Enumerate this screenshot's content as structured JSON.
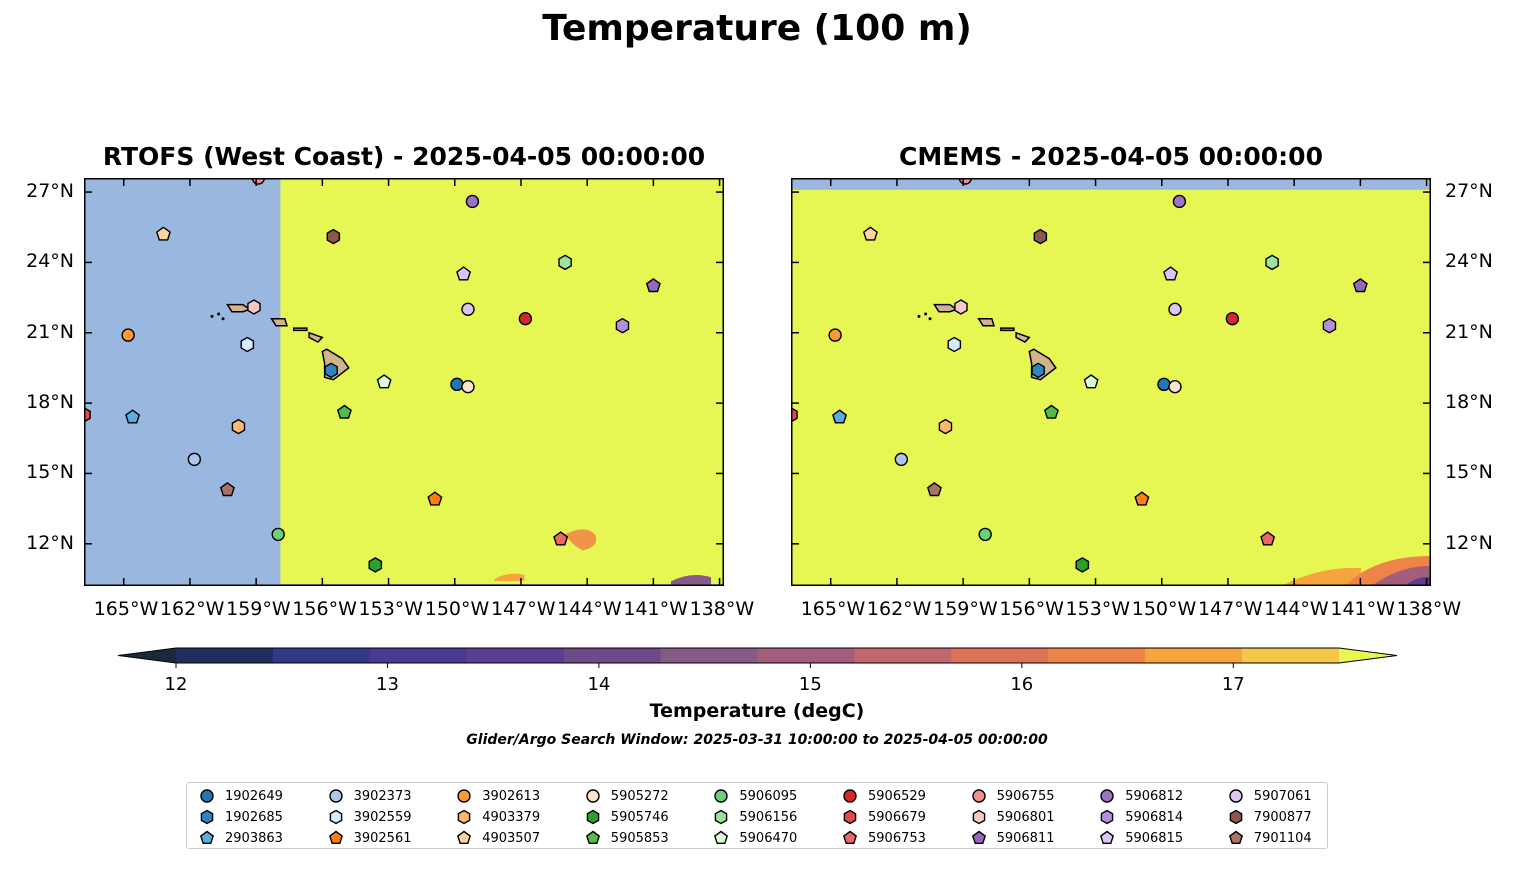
{
  "title": "Temperature (100 m)",
  "colors": {
    "land": "#d2b48c",
    "nodata": "#9ab7e0",
    "field_warm": "#e6f754",
    "colormap": [
      "#1b2a3a",
      "#1f2e5e",
      "#2e3a86",
      "#473a94",
      "#5b3e8f",
      "#6e4a88",
      "#855a84",
      "#a25e7a",
      "#c2686c",
      "#dd7359",
      "#ef8448",
      "#f5a43e",
      "#f3c74a",
      "#e6f754"
    ]
  },
  "panels": [
    {
      "title": "RTOFS (West Coast) - 2025-04-05 00:00:00"
    },
    {
      "title": "CMEMS - 2025-04-05 00:00:00"
    }
  ],
  "axes": {
    "lon_ticks": [
      "165°W",
      "162°W",
      "159°W",
      "156°W",
      "153°W",
      "150°W",
      "147°W",
      "144°W",
      "141°W",
      "138°W"
    ],
    "lat_ticks": [
      "27°N",
      "24°N",
      "21°N",
      "18°N",
      "15°N",
      "12°N"
    ]
  },
  "colorbar": {
    "label": "Temperature (degC)",
    "ticks": [
      "12",
      "13",
      "14",
      "15",
      "16",
      "17"
    ],
    "min": 11.75,
    "max": 17.75,
    "extend": "both"
  },
  "search_window": "Glider/Argo Search Window: 2025-03-31 10:00:00 to 2025-04-05 00:00:00",
  "chart_data": {
    "type": "scatter",
    "title": "Temperature (100 m)",
    "subplot_titles": [
      "RTOFS (West Coast) - 2025-04-05 00:00:00",
      "CMEMS - 2025-04-05 00:00:00"
    ],
    "xlabel": "",
    "ylabel": "",
    "xlim": [
      -166.8,
      -137.8
    ],
    "ylim": [
      10.2,
      27.6
    ],
    "grid": false,
    "legend_position": "bottom",
    "colorbar_label": "Temperature (degC)",
    "series": [
      {
        "name": "1902649",
        "marker": "circle",
        "color": "#1f77b4",
        "x": -149.9,
        "y": 18.8
      },
      {
        "name": "3902373",
        "marker": "circle",
        "color": "#aec7e8",
        "x": -161.8,
        "y": 15.6
      },
      {
        "name": "3902613",
        "marker": "circle",
        "color": "#ff9933",
        "x": -164.8,
        "y": 20.9
      },
      {
        "name": "5905272",
        "marker": "circle",
        "color": "#fde3cc",
        "x": -149.4,
        "y": 18.7
      },
      {
        "name": "5906095",
        "marker": "circle",
        "color": "#6cd07a",
        "x": -158.0,
        "y": 12.4
      },
      {
        "name": "5906529",
        "marker": "circle",
        "color": "#d62728",
        "x": -146.8,
        "y": 21.6
      },
      {
        "name": "5906755",
        "marker": "circle",
        "color": "#f0908c",
        "x": -158.9,
        "y": 27.6
      },
      {
        "name": "5906812",
        "marker": "circle",
        "color": "#9b72c4",
        "x": -149.2,
        "y": 26.6
      },
      {
        "name": "5907061",
        "marker": "circle",
        "color": "#dcc6f4",
        "x": -149.4,
        "y": 22.0
      },
      {
        "name": "1902685",
        "marker": "hexagon",
        "color": "#2e86c1",
        "x": -155.6,
        "y": 19.4
      },
      {
        "name": "3902559",
        "marker": "hexagon",
        "color": "#d6ebfb",
        "x": -159.4,
        "y": 20.5
      },
      {
        "name": "4903379",
        "marker": "hexagon",
        "color": "#ffb670",
        "x": -159.8,
        "y": 17.0
      },
      {
        "name": "5905746",
        "marker": "hexagon",
        "color": "#2ca02c",
        "x": -153.6,
        "y": 11.1
      },
      {
        "name": "5906156",
        "marker": "hexagon",
        "color": "#9ee29b",
        "x": -145.0,
        "y": 24.0
      },
      {
        "name": "5906679",
        "marker": "hexagon",
        "color": "#e04b4b",
        "x": -166.8,
        "y": 17.5
      },
      {
        "name": "5906801",
        "marker": "hexagon",
        "color": "#f8c8c8",
        "x": -159.1,
        "y": 22.1
      },
      {
        "name": "5906814",
        "marker": "hexagon",
        "color": "#b58fdc",
        "x": -142.4,
        "y": 21.3
      },
      {
        "name": "7900877",
        "marker": "hexagon",
        "color": "#8c564b",
        "x": -155.5,
        "y": 25.1
      },
      {
        "name": "2903863",
        "marker": "pentagon",
        "color": "#5dade2",
        "x": -164.6,
        "y": 17.4
      },
      {
        "name": "3902561",
        "marker": "pentagon",
        "color": "#ff7f0e",
        "x": -150.9,
        "y": 13.9
      },
      {
        "name": "4903507",
        "marker": "pentagon",
        "color": "#ffd49e",
        "x": -163.2,
        "y": 25.2
      },
      {
        "name": "5905853",
        "marker": "pentagon",
        "color": "#4fbf4a",
        "x": -155.0,
        "y": 17.6
      },
      {
        "name": "5906470",
        "marker": "pentagon",
        "color": "#d9fcd9",
        "x": -153.2,
        "y": 18.9
      },
      {
        "name": "5906753",
        "marker": "pentagon",
        "color": "#ee6666",
        "x": -145.2,
        "y": 12.2
      },
      {
        "name": "5906811",
        "marker": "pentagon",
        "color": "#9467bd",
        "x": -141.0,
        "y": 23.0
      },
      {
        "name": "5906815",
        "marker": "pentagon",
        "color": "#ddc4fa",
        "x": -149.6,
        "y": 23.5
      },
      {
        "name": "7901104",
        "marker": "pentagon",
        "color": "#a87564",
        "x": -160.3,
        "y": 14.3
      }
    ]
  }
}
